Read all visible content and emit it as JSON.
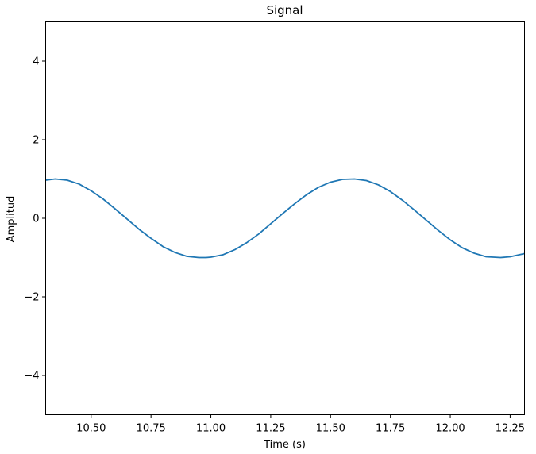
{
  "chart_data": {
    "type": "line",
    "title": "Signal",
    "xlabel": "Time (s)",
    "ylabel": "Amplitud",
    "xlim": [
      10.31,
      12.31
    ],
    "ylim": [
      -5,
      5
    ],
    "x_ticks": [
      10.5,
      10.75,
      11.0,
      11.25,
      11.5,
      11.75,
      12.0,
      12.25
    ],
    "x_tick_labels": [
      "10.50",
      "10.75",
      "11.00",
      "11.25",
      "11.50",
      "11.75",
      "12.00",
      "12.25"
    ],
    "y_ticks": [
      -4,
      -2,
      0,
      2,
      4
    ],
    "y_tick_labels": [
      "−4",
      "−2",
      "0",
      "2",
      "4"
    ],
    "grid": false,
    "series": [
      {
        "color": "#1f77b4",
        "x": [
          10.31,
          10.35,
          10.4,
          10.45,
          10.5,
          10.55,
          10.6,
          10.65,
          10.7,
          10.75,
          10.8,
          10.85,
          10.9,
          10.95,
          10.98,
          11.0,
          11.05,
          11.1,
          11.15,
          11.2,
          11.25,
          11.3,
          11.35,
          11.4,
          11.45,
          11.5,
          11.55,
          11.6,
          11.65,
          11.7,
          11.75,
          11.8,
          11.85,
          11.9,
          11.95,
          12.0,
          12.05,
          12.1,
          12.15,
          12.21,
          12.25,
          12.31
        ],
        "y": [
          0.97,
          1.0,
          0.97,
          0.87,
          0.7,
          0.49,
          0.24,
          -0.02,
          -0.28,
          -0.51,
          -0.72,
          -0.87,
          -0.97,
          -1.0,
          -1.0,
          -0.99,
          -0.93,
          -0.8,
          -0.62,
          -0.4,
          -0.14,
          0.12,
          0.37,
          0.6,
          0.79,
          0.92,
          0.99,
          1.0,
          0.96,
          0.85,
          0.68,
          0.46,
          0.21,
          -0.05,
          -0.31,
          -0.55,
          -0.75,
          -0.89,
          -0.98,
          -1.0,
          -0.98,
          -0.9
        ]
      }
    ]
  }
}
